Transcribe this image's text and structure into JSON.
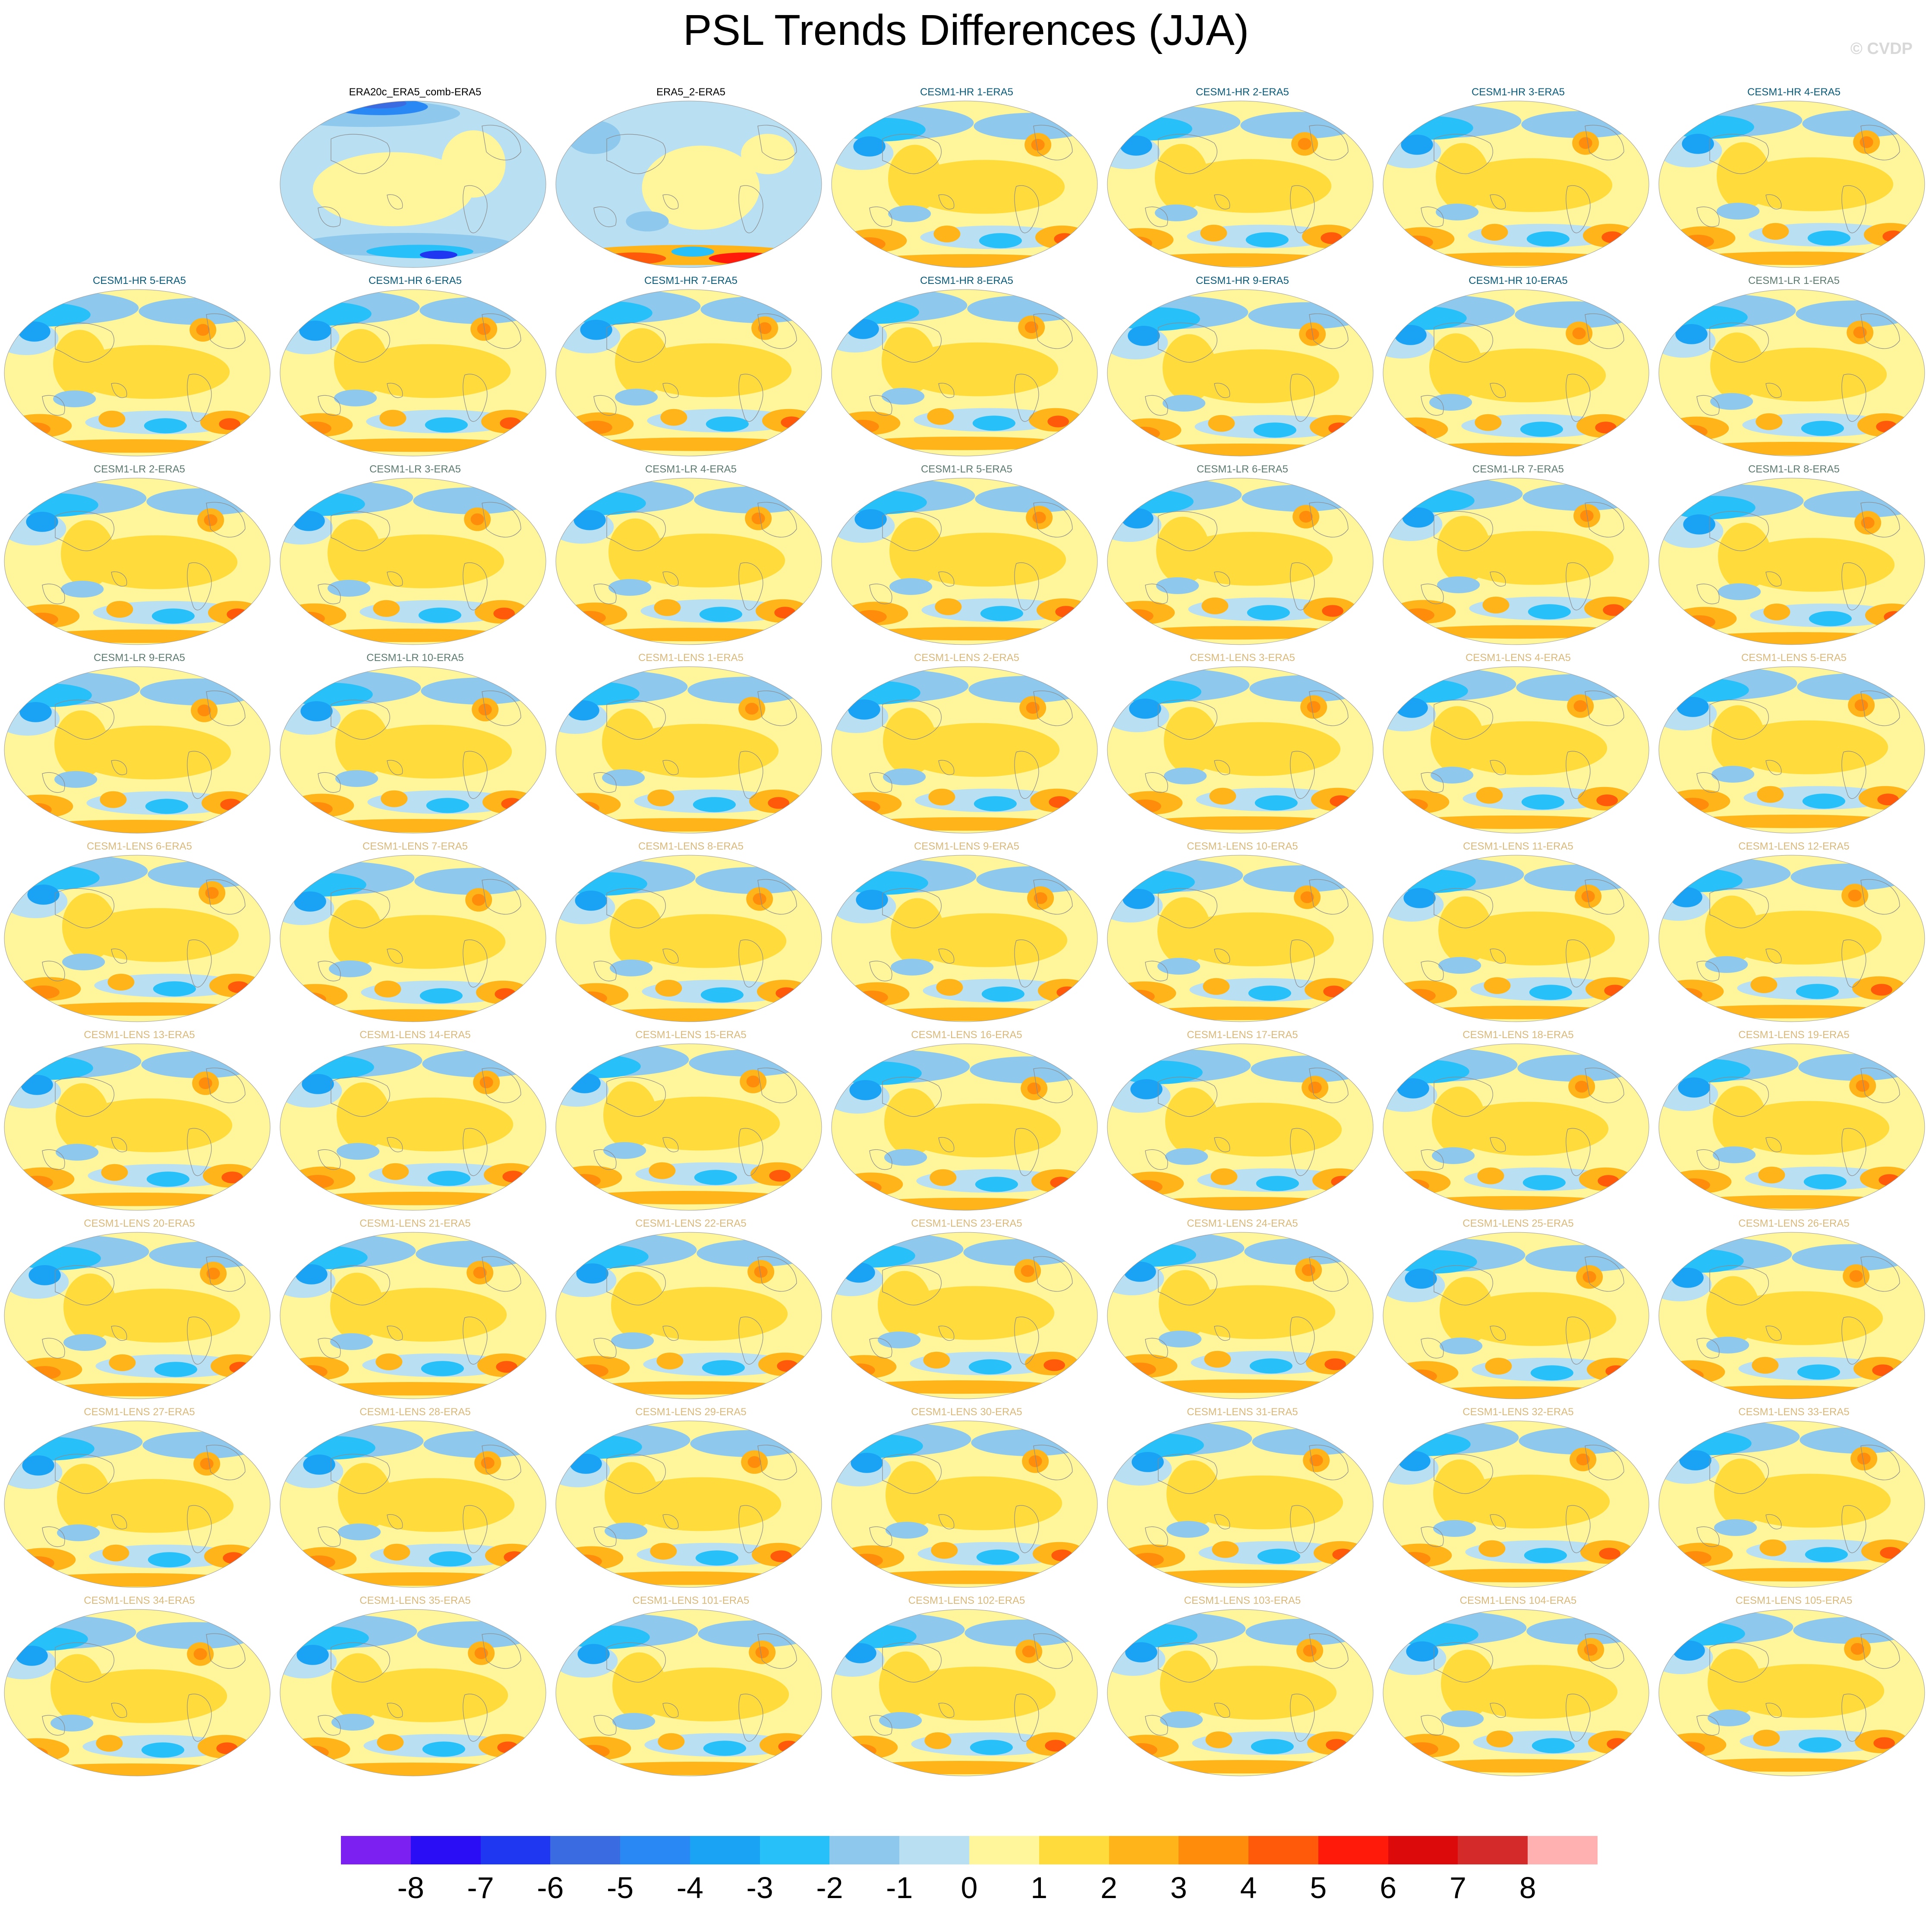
{
  "title": "PSL Trends Differences (JJA)",
  "credit": "© CVDP",
  "panels": [
    {
      "label": "ERA20c_ERA5_comb-ERA5",
      "color": "#000000",
      "style": "obs1"
    },
    {
      "label": "ERA5_2-ERA5",
      "color": "#000000",
      "style": "obs2"
    },
    {
      "label": "CESM1-HR 1-ERA5",
      "color": "#0b5a78",
      "style": "model"
    },
    {
      "label": "CESM1-HR 2-ERA5",
      "color": "#0b5a78",
      "style": "model"
    },
    {
      "label": "CESM1-HR 3-ERA5",
      "color": "#0b5a78",
      "style": "model"
    },
    {
      "label": "CESM1-HR 4-ERA5",
      "color": "#0b5a78",
      "style": "model"
    },
    {
      "label": "CESM1-HR 5-ERA5",
      "color": "#0b5a78",
      "style": "model"
    },
    {
      "label": "CESM1-HR 6-ERA5",
      "color": "#0b5a78",
      "style": "model"
    },
    {
      "label": "CESM1-HR 7-ERA5",
      "color": "#0b5a78",
      "style": "model"
    },
    {
      "label": "CESM1-HR 8-ERA5",
      "color": "#0b5a78",
      "style": "model"
    },
    {
      "label": "CESM1-HR 9-ERA5",
      "color": "#0b5a78",
      "style": "model"
    },
    {
      "label": "CESM1-HR 10-ERA5",
      "color": "#0b5a78",
      "style": "model"
    },
    {
      "label": "CESM1-LR 1-ERA5",
      "color": "#5d7a70",
      "style": "model"
    },
    {
      "label": "CESM1-LR 2-ERA5",
      "color": "#5d7a70",
      "style": "model"
    },
    {
      "label": "CESM1-LR 3-ERA5",
      "color": "#5d7a70",
      "style": "model"
    },
    {
      "label": "CESM1-LR 4-ERA5",
      "color": "#5d7a70",
      "style": "model"
    },
    {
      "label": "CESM1-LR 5-ERA5",
      "color": "#5d7a70",
      "style": "model"
    },
    {
      "label": "CESM1-LR 6-ERA5",
      "color": "#5d7a70",
      "style": "model"
    },
    {
      "label": "CESM1-LR 7-ERA5",
      "color": "#5d7a70",
      "style": "model"
    },
    {
      "label": "CESM1-LR 8-ERA5",
      "color": "#5d7a70",
      "style": "model"
    },
    {
      "label": "CESM1-LR 9-ERA5",
      "color": "#5d7a70",
      "style": "model"
    },
    {
      "label": "CESM1-LR 10-ERA5",
      "color": "#5d7a70",
      "style": "model"
    },
    {
      "label": "CESM1-LENS 1-ERA5",
      "color": "#d9b97c",
      "style": "model"
    },
    {
      "label": "CESM1-LENS 2-ERA5",
      "color": "#d9b97c",
      "style": "model"
    },
    {
      "label": "CESM1-LENS 3-ERA5",
      "color": "#d9b97c",
      "style": "model"
    },
    {
      "label": "CESM1-LENS 4-ERA5",
      "color": "#d9b97c",
      "style": "model"
    },
    {
      "label": "CESM1-LENS 5-ERA5",
      "color": "#d9b97c",
      "style": "model"
    },
    {
      "label": "CESM1-LENS 6-ERA5",
      "color": "#d9b97c",
      "style": "model"
    },
    {
      "label": "CESM1-LENS 7-ERA5",
      "color": "#d9b97c",
      "style": "model"
    },
    {
      "label": "CESM1-LENS 8-ERA5",
      "color": "#d9b97c",
      "style": "model"
    },
    {
      "label": "CESM1-LENS 9-ERA5",
      "color": "#d9b97c",
      "style": "model"
    },
    {
      "label": "CESM1-LENS 10-ERA5",
      "color": "#d9b97c",
      "style": "model"
    },
    {
      "label": "CESM1-LENS 11-ERA5",
      "color": "#d9b97c",
      "style": "model"
    },
    {
      "label": "CESM1-LENS 12-ERA5",
      "color": "#d9b97c",
      "style": "model"
    },
    {
      "label": "CESM1-LENS 13-ERA5",
      "color": "#d9b97c",
      "style": "model"
    },
    {
      "label": "CESM1-LENS 14-ERA5",
      "color": "#d9b97c",
      "style": "model"
    },
    {
      "label": "CESM1-LENS 15-ERA5",
      "color": "#d9b97c",
      "style": "model"
    },
    {
      "label": "CESM1-LENS 16-ERA5",
      "color": "#d9b97c",
      "style": "model"
    },
    {
      "label": "CESM1-LENS 17-ERA5",
      "color": "#d9b97c",
      "style": "model"
    },
    {
      "label": "CESM1-LENS 18-ERA5",
      "color": "#d9b97c",
      "style": "model"
    },
    {
      "label": "CESM1-LENS 19-ERA5",
      "color": "#d9b97c",
      "style": "model"
    },
    {
      "label": "CESM1-LENS 20-ERA5",
      "color": "#d9b97c",
      "style": "model"
    },
    {
      "label": "CESM1-LENS 21-ERA5",
      "color": "#d9b97c",
      "style": "model"
    },
    {
      "label": "CESM1-LENS 22-ERA5",
      "color": "#d9b97c",
      "style": "model"
    },
    {
      "label": "CESM1-LENS 23-ERA5",
      "color": "#d9b97c",
      "style": "model"
    },
    {
      "label": "CESM1-LENS 24-ERA5",
      "color": "#d9b97c",
      "style": "model"
    },
    {
      "label": "CESM1-LENS 25-ERA5",
      "color": "#d9b97c",
      "style": "model"
    },
    {
      "label": "CESM1-LENS 26-ERA5",
      "color": "#d9b97c",
      "style": "model"
    },
    {
      "label": "CESM1-LENS 27-ERA5",
      "color": "#d9b97c",
      "style": "model"
    },
    {
      "label": "CESM1-LENS 28-ERA5",
      "color": "#d9b97c",
      "style": "model"
    },
    {
      "label": "CESM1-LENS 29-ERA5",
      "color": "#d9b97c",
      "style": "model"
    },
    {
      "label": "CESM1-LENS 30-ERA5",
      "color": "#d9b97c",
      "style": "model"
    },
    {
      "label": "CESM1-LENS 31-ERA5",
      "color": "#d9b97c",
      "style": "model"
    },
    {
      "label": "CESM1-LENS 32-ERA5",
      "color": "#d9b97c",
      "style": "model"
    },
    {
      "label": "CESM1-LENS 33-ERA5",
      "color": "#d9b97c",
      "style": "model"
    },
    {
      "label": "CESM1-LENS 34-ERA5",
      "color": "#d9b97c",
      "style": "model"
    },
    {
      "label": "CESM1-LENS 35-ERA5",
      "color": "#d9b97c",
      "style": "model"
    },
    {
      "label": "CESM1-LENS 101-ERA5",
      "color": "#d9b97c",
      "style": "model"
    },
    {
      "label": "CESM1-LENS 102-ERA5",
      "color": "#d9b97c",
      "style": "model"
    },
    {
      "label": "CESM1-LENS 103-ERA5",
      "color": "#d9b97c",
      "style": "model"
    },
    {
      "label": "CESM1-LENS 104-ERA5",
      "color": "#d9b97c",
      "style": "model"
    },
    {
      "label": "CESM1-LENS 105-ERA5",
      "color": "#d9b97c",
      "style": "model"
    }
  ],
  "colorbar": {
    "colors": [
      "#7b20f0",
      "#2a0cf5",
      "#1f37f0",
      "#3b6be0",
      "#2a88f5",
      "#1aa3f5",
      "#28c0f8",
      "#8ec8ec",
      "#b8dff2",
      "#fff59a",
      "#ffdb3c",
      "#ffb419",
      "#ff8c0a",
      "#ff5a0a",
      "#ff1a0a",
      "#dc0a0a",
      "#d42a2a",
      "#ffb0b0"
    ],
    "ticks": [
      "-8",
      "-7",
      "-6",
      "-5",
      "-4",
      "-3",
      "-2",
      "-1",
      "0",
      "1",
      "2",
      "3",
      "4",
      "5",
      "6",
      "7",
      "8"
    ]
  }
}
